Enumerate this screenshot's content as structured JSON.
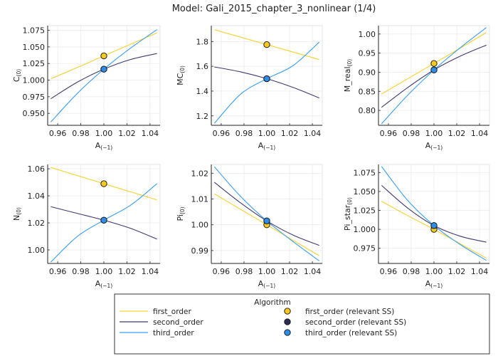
{
  "title": "Model: Gali_2015_chapter_3_nonlinear  (1/4)",
  "colors": {
    "first_order": "#f6d12e",
    "second_order": "#3d3a70",
    "third_order": "#3a9ef2",
    "first_order_marker": "#f7c81f",
    "second_order_marker": "#2e2c55",
    "third_order_marker": "#2f8de8"
  },
  "legend": {
    "title": "Algorithm",
    "placement": "bottom-center",
    "lines": [
      "first_order",
      "second_order",
      "third_order"
    ],
    "markers": [
      "first_order (relevant SS)",
      "second_order (relevant SS)",
      "third_order (relevant SS)"
    ]
  },
  "chart_data": [
    {
      "type": "line",
      "xlabel": {
        "base": "A",
        "sub": "(−1)"
      },
      "ylabel": {
        "base": "C",
        "sub": "(0)"
      },
      "xlim": [
        0.9513,
        1.0487
      ],
      "ylim": [
        0.932,
        1.082
      ],
      "xticks": [
        "0.96",
        "0.98",
        "1.00",
        "1.02",
        "1.04"
      ],
      "yticks": [
        "0.950",
        "0.975",
        "1.000",
        "1.025",
        "1.050",
        "1.075"
      ],
      "grid": true,
      "x": [
        0.954,
        0.977,
        1.0,
        1.023,
        1.046
      ],
      "series": [
        {
          "name": "first_order",
          "values": [
            1.002,
            1.019,
            1.0365,
            1.054,
            1.071
          ]
        },
        {
          "name": "second_order",
          "values": [
            0.972,
            0.997,
            1.0165,
            1.031,
            1.04
          ]
        },
        {
          "name": "third_order",
          "values": [
            0.937,
            0.98,
            1.0165,
            1.048,
            1.076
          ]
        }
      ],
      "ss_points": [
        {
          "name": "first_order (relevant SS)",
          "x": 1.0,
          "y": 1.0365
        },
        {
          "name": "second_order (relevant SS)",
          "x": 1.0,
          "y": 1.0165
        },
        {
          "name": "third_order (relevant SS)",
          "x": 1.0,
          "y": 1.0165
        }
      ]
    },
    {
      "type": "line",
      "xlabel": {
        "base": "A",
        "sub": "(−1)"
      },
      "ylabel": {
        "base": "MC",
        "sub": "(0)"
      },
      "xlim": [
        0.9513,
        1.0487
      ],
      "ylim": [
        1.124,
        1.928
      ],
      "xticks": [
        "0.96",
        "0.98",
        "1.00",
        "1.02",
        "1.04"
      ],
      "yticks": [
        "1.2",
        "1.4",
        "1.6",
        "1.8"
      ],
      "grid": true,
      "x": [
        0.954,
        0.977,
        1.0,
        1.023,
        1.046
      ],
      "series": [
        {
          "name": "first_order",
          "values": [
            1.895,
            1.835,
            1.775,
            1.715,
            1.655
          ]
        },
        {
          "name": "second_order",
          "values": [
            1.595,
            1.555,
            1.5,
            1.43,
            1.345
          ]
        },
        {
          "name": "third_order",
          "values": [
            1.14,
            1.375,
            1.5,
            1.605,
            1.795
          ]
        }
      ],
      "ss_points": [
        {
          "name": "first_order (relevant SS)",
          "x": 1.0,
          "y": 1.775
        },
        {
          "name": "second_order (relevant SS)",
          "x": 1.0,
          "y": 1.5
        },
        {
          "name": "third_order (relevant SS)",
          "x": 1.0,
          "y": 1.5
        }
      ]
    },
    {
      "type": "line",
      "xlabel": {
        "base": "A",
        "sub": "(−1)"
      },
      "ylabel": {
        "base": "M_real",
        "sub": "(0)"
      },
      "xlim": [
        0.9513,
        1.0487
      ],
      "ylim": [
        0.761,
        1.022
      ],
      "xticks": [
        "0.96",
        "0.98",
        "1.00",
        "1.02",
        "1.04"
      ],
      "yticks": [
        "0.80",
        "0.85",
        "0.90",
        "0.95",
        "1.00"
      ],
      "grid": true,
      "x": [
        0.954,
        0.977,
        1.0,
        1.023,
        1.046
      ],
      "series": [
        {
          "name": "first_order",
          "values": [
            0.843,
            0.883,
            0.923,
            0.963,
            1.004
          ]
        },
        {
          "name": "second_order",
          "values": [
            0.808,
            0.86,
            0.906,
            0.942,
            0.971
          ]
        },
        {
          "name": "third_order",
          "values": [
            0.765,
            0.84,
            0.906,
            0.964,
            1.017
          ]
        }
      ],
      "ss_points": [
        {
          "name": "first_order (relevant SS)",
          "x": 1.0,
          "y": 0.923
        },
        {
          "name": "second_order (relevant SS)",
          "x": 1.0,
          "y": 0.906
        },
        {
          "name": "third_order (relevant SS)",
          "x": 1.0,
          "y": 0.906
        }
      ]
    },
    {
      "type": "line",
      "xlabel": {
        "base": "A",
        "sub": "(−1)"
      },
      "ylabel": {
        "base": "N",
        "sub": "(0)"
      },
      "xlim": [
        0.9513,
        1.0487
      ],
      "ylim": [
        0.99,
        1.0632
      ],
      "xticks": [
        "0.96",
        "0.98",
        "1.00",
        "1.02",
        "1.04"
      ],
      "yticks": [
        "1.00",
        "1.02",
        "1.04",
        "1.06"
      ],
      "grid": true,
      "x": [
        0.954,
        0.977,
        1.0,
        1.023,
        1.046
      ],
      "series": [
        {
          "name": "first_order",
          "values": [
            1.061,
            1.055,
            1.049,
            1.043,
            1.037
          ]
        },
        {
          "name": "second_order",
          "values": [
            1.032,
            1.027,
            1.022,
            1.016,
            1.008
          ]
        },
        {
          "name": "third_order",
          "values": [
            0.991,
            1.01,
            1.022,
            1.033,
            1.049
          ]
        }
      ],
      "ss_points": [
        {
          "name": "first_order (relevant SS)",
          "x": 1.0,
          "y": 1.049
        },
        {
          "name": "second_order (relevant SS)",
          "x": 1.0,
          "y": 1.022
        },
        {
          "name": "third_order (relevant SS)",
          "x": 1.0,
          "y": 1.022
        }
      ]
    },
    {
      "type": "line",
      "xlabel": {
        "base": "A",
        "sub": "(−1)"
      },
      "ylabel": {
        "base": "Pi",
        "sub": "(0)"
      },
      "xlim": [
        0.9513,
        1.0487
      ],
      "ylim": [
        0.985,
        1.0234
      ],
      "xticks": [
        "0.96",
        "0.98",
        "1.00",
        "1.02",
        "1.04"
      ],
      "yticks": [
        "0.99",
        "1.00",
        "1.01",
        "1.02"
      ],
      "grid": true,
      "x": [
        0.954,
        0.977,
        1.0,
        1.023,
        1.046
      ],
      "series": [
        {
          "name": "first_order",
          "values": [
            1.012,
            1.006,
            1.0,
            0.994,
            0.988
          ]
        },
        {
          "name": "second_order",
          "values": [
            1.0165,
            1.0085,
            1.0015,
            0.996,
            0.992
          ]
        },
        {
          "name": "third_order",
          "values": [
            1.0225,
            1.011,
            1.0015,
            0.9935,
            0.986
          ]
        }
      ],
      "ss_points": [
        {
          "name": "first_order (relevant SS)",
          "x": 1.0,
          "y": 1.0
        },
        {
          "name": "second_order (relevant SS)",
          "x": 1.0,
          "y": 1.0015
        },
        {
          "name": "third_order (relevant SS)",
          "x": 1.0,
          "y": 1.0015
        }
      ]
    },
    {
      "type": "line",
      "xlabel": {
        "base": "A",
        "sub": "(−1)"
      },
      "ylabel": {
        "base": "Pi_star",
        "sub": "(0)"
      },
      "xlim": [
        0.9513,
        1.0487
      ],
      "ylim": [
        0.955,
        1.0856
      ],
      "xticks": [
        "0.96",
        "0.98",
        "1.00",
        "1.02",
        "1.04"
      ],
      "yticks": [
        "0.975",
        "1.000",
        "1.025",
        "1.050",
        "1.075"
      ],
      "grid": true,
      "x": [
        0.954,
        0.977,
        1.0,
        1.023,
        1.046
      ],
      "series": [
        {
          "name": "first_order",
          "values": [
            1.037,
            1.018,
            1.0,
            0.981,
            0.962
          ]
        },
        {
          "name": "second_order",
          "values": [
            1.058,
            1.028,
            1.005,
            0.991,
            0.983
          ]
        },
        {
          "name": "third_order",
          "values": [
            1.083,
            1.038,
            1.005,
            0.98,
            0.959
          ]
        }
      ],
      "ss_points": [
        {
          "name": "first_order (relevant SS)",
          "x": 1.0,
          "y": 1.0
        },
        {
          "name": "second_order (relevant SS)",
          "x": 1.0,
          "y": 1.005
        },
        {
          "name": "third_order (relevant SS)",
          "x": 1.0,
          "y": 1.005
        }
      ]
    }
  ]
}
